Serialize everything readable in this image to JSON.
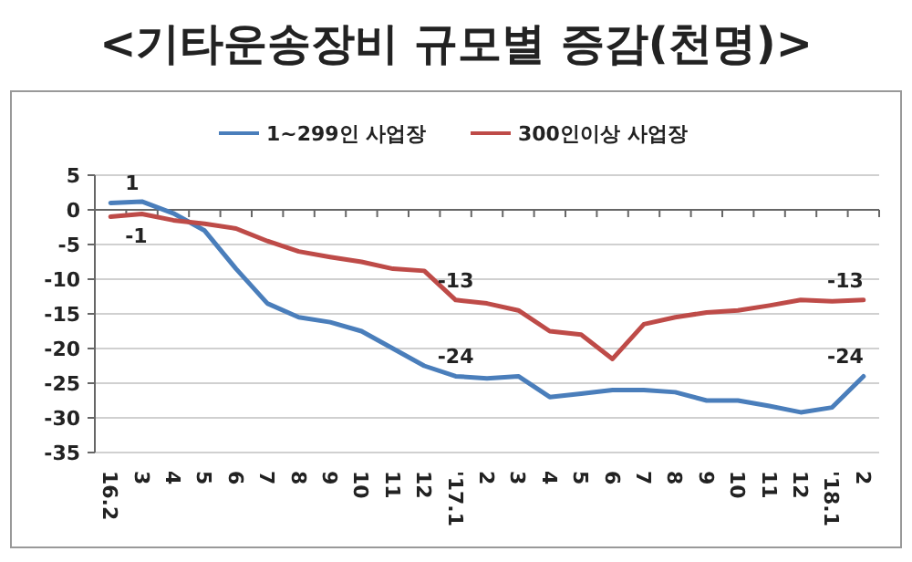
{
  "chart_data": {
    "type": "line",
    "title": "<기타운송장비 규모별 증감(천명)>",
    "categories": [
      "16.2",
      "3",
      "4",
      "5",
      "6",
      "7",
      "8",
      "9",
      "10",
      "11",
      "12",
      "'17.1",
      "2",
      "3",
      "4",
      "5",
      "6",
      "7",
      "8",
      "9",
      "10",
      "11",
      "12",
      "'18.1",
      "2"
    ],
    "series": [
      {
        "name": "1~299인 사업장",
        "color": "#4a7ebb",
        "values": [
          1,
          1.2,
          -0.5,
          -3,
          -8.5,
          -13.5,
          -15.5,
          -16.2,
          -17.5,
          -20,
          -22.5,
          -24,
          -24.3,
          -24,
          -27,
          -26.5,
          -26,
          -26,
          -26.3,
          -27.5,
          -27.5,
          -28.3,
          -29.2,
          -28.5,
          -24
        ],
        "value_labels": [
          "1",
          null,
          null,
          null,
          null,
          null,
          null,
          null,
          null,
          null,
          null,
          "-24",
          null,
          null,
          null,
          null,
          null,
          null,
          null,
          null,
          null,
          null,
          null,
          null,
          "-24"
        ]
      },
      {
        "name": "300인이상 사업장",
        "color": "#be4b48",
        "values": [
          -1,
          -0.6,
          -1.5,
          -2,
          -2.7,
          -4.5,
          -6,
          -6.8,
          -7.5,
          -8.5,
          -8.8,
          -13,
          -13.5,
          -14.5,
          -17.5,
          -18,
          -21.5,
          -16.5,
          -15.5,
          -14.8,
          -14.5,
          -13.8,
          -13,
          -13.2,
          -13
        ],
        "value_labels": [
          "-1",
          null,
          null,
          null,
          null,
          null,
          null,
          null,
          null,
          null,
          null,
          "-13",
          null,
          null,
          null,
          null,
          null,
          null,
          null,
          null,
          null,
          null,
          null,
          null,
          "-13"
        ]
      }
    ],
    "ylim": [
      -35,
      5
    ],
    "yticks": [
      5,
      0,
      -5,
      -10,
      -15,
      -20,
      -25,
      -30,
      -35
    ],
    "grid": "y",
    "legend": "top",
    "marker": "none",
    "line_style": "solid"
  }
}
